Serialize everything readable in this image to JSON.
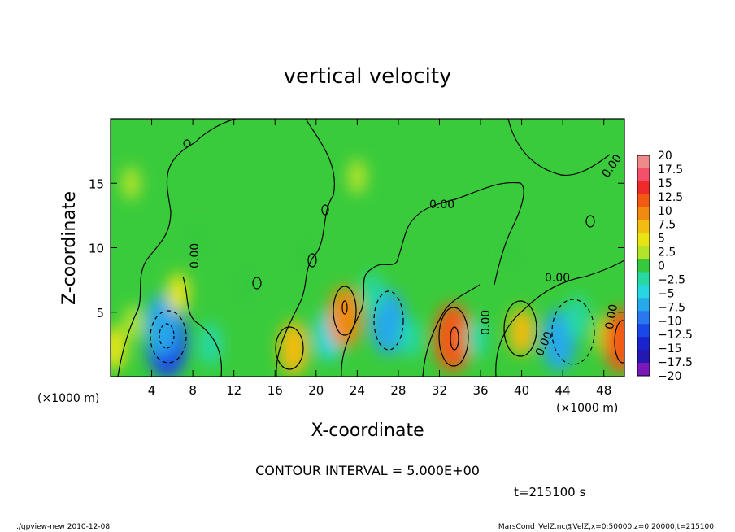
{
  "chart_data": {
    "type": "heatmap",
    "title": "vertical velocity",
    "xlabel": "X-coordinate",
    "ylabel": "Z-coordinate",
    "x_unit_label": "(×1000 m)",
    "y_unit_label": "(×1000 m)",
    "xlim": [
      0,
      50
    ],
    "ylim": [
      0,
      20
    ],
    "x_ticks": [
      4,
      8,
      12,
      16,
      20,
      24,
      28,
      32,
      36,
      40,
      44,
      48
    ],
    "y_ticks": [
      5,
      10,
      15
    ],
    "colorbar": {
      "levels": [
        20,
        17.5,
        15,
        12.5,
        10,
        7.5,
        5,
        2.5,
        0,
        -2.5,
        -5,
        -7.5,
        -10,
        -12.5,
        -15,
        -17.5,
        -20
      ],
      "labels": [
        "20",
        "17.5",
        "15",
        "12.5",
        "10",
        "7.5",
        "5",
        "2.5",
        "0",
        "−2.5",
        "−5",
        "−7.5",
        "−10",
        "−12.5",
        "−15",
        "−17.5",
        "−20"
      ],
      "colors": [
        "#ee8a8a",
        "#f4506a",
        "#f02a2a",
        "#f25a14",
        "#f08a10",
        "#f2bc10",
        "#e8e414",
        "#b4e42a",
        "#36c83e",
        "#28d8a2",
        "#26d6e0",
        "#26a8ea",
        "#2878f0",
        "#1a48e8",
        "#1a24cc",
        "#2418b0",
        "#7a18b8"
      ]
    },
    "contour_interval_text": "CONTOUR INTERVAL = 5.000E+00",
    "contour_labels": [
      "0.00",
      "0.00",
      "0.00",
      "0.00",
      "0.00",
      "0.00",
      "0.00"
    ],
    "cells": [
      {
        "x": 5.5,
        "z": 2.8,
        "w": -13
      },
      {
        "x": 5.0,
        "z": 4.0,
        "w": -9
      },
      {
        "x": 9.7,
        "z": 2.5,
        "w": -4
      },
      {
        "x": 6.6,
        "z": 6.5,
        "w": 3
      },
      {
        "x": 2.2,
        "z": 4.2,
        "w": 1.5
      },
      {
        "x": 0.4,
        "z": 2.2,
        "w": 4
      },
      {
        "x": 17.8,
        "z": 2.2,
        "w": 7
      },
      {
        "x": 13.2,
        "z": 7.0,
        "w": -2
      },
      {
        "x": 21.2,
        "z": 3.2,
        "w": -6
      },
      {
        "x": 22.8,
        "z": 4.6,
        "w": 9
      },
      {
        "x": 27.0,
        "z": 4.2,
        "w": -10
      },
      {
        "x": 25.5,
        "z": 6.5,
        "w": -3
      },
      {
        "x": 29.2,
        "z": 3.0,
        "w": -3
      },
      {
        "x": 33.3,
        "z": 3.0,
        "w": 11
      },
      {
        "x": 35.6,
        "z": 3.0,
        "w": -3
      },
      {
        "x": 40.0,
        "z": 3.5,
        "w": 5
      },
      {
        "x": 43.6,
        "z": 2.8,
        "w": -9
      },
      {
        "x": 45.4,
        "z": 4.6,
        "w": -4
      },
      {
        "x": 48.0,
        "z": 3.2,
        "w": 2
      },
      {
        "x": 49.7,
        "z": 2.8,
        "w": 10
      },
      {
        "x": 8.5,
        "z": 10.5,
        "w": -1.5
      },
      {
        "x": 19.0,
        "z": 9.5,
        "w": -1
      },
      {
        "x": 39.0,
        "z": 9.5,
        "w": -1
      },
      {
        "x": 24.0,
        "z": 15.5,
        "w": 1.5
      },
      {
        "x": 2.0,
        "z": 15.0,
        "w": 1.2
      }
    ],
    "time_label": "t=215100 s"
  },
  "footer": {
    "left": "./gpview-new   2010-12-08",
    "right": "MarsCond_VelZ.nc@VelZ,x=0:50000,z=0:20000,t=215100"
  }
}
